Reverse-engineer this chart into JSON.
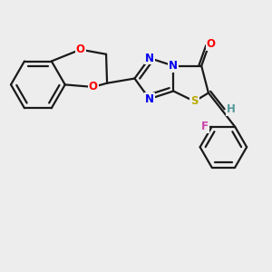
{
  "background_color": "#ededee",
  "bond_color": "#1a1a1a",
  "bond_lw": 1.6,
  "atom_colors": {
    "O": "#ff0000",
    "N": "#0000ee",
    "S": "#bbaa00",
    "F": "#cc44aa",
    "H": "#559999"
  },
  "font_size": 8.5,
  "fig_size": [
    3.0,
    3.0
  ],
  "dpi": 100
}
